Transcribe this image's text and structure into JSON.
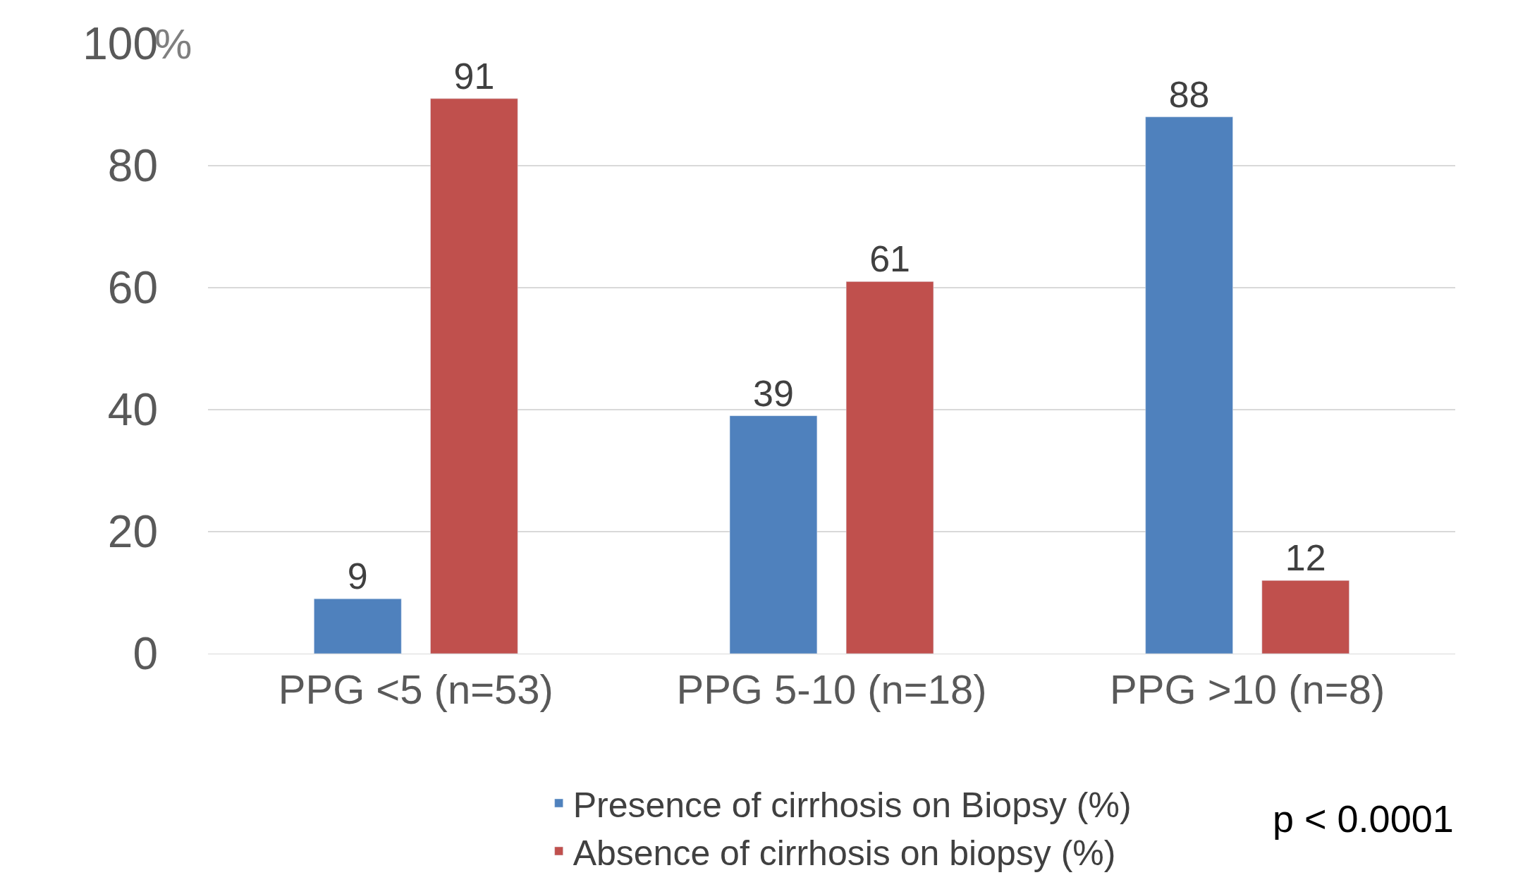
{
  "chart_data": {
    "type": "bar",
    "ylabel": "%",
    "categories": [
      "PPG <5 (n=53)",
      "PPG 5-10 (n=18)",
      "PPG >10 (n=8)"
    ],
    "series": [
      {
        "name": "Presence of cirrhosis on Biopsy (%)",
        "color": "#4f81bd",
        "values": [
          9,
          39,
          88
        ]
      },
      {
        "name": "Absence of cirrhosis on biopsy (%)",
        "color": "#c0504d",
        "values": [
          91,
          61,
          12
        ]
      }
    ],
    "ylim": [
      0,
      100
    ],
    "yticks": [
      0,
      20,
      40,
      60,
      80,
      100
    ],
    "grid": "y",
    "legend": "bottom",
    "data_labels": true,
    "annotations": [
      "p < 0.0001"
    ]
  }
}
